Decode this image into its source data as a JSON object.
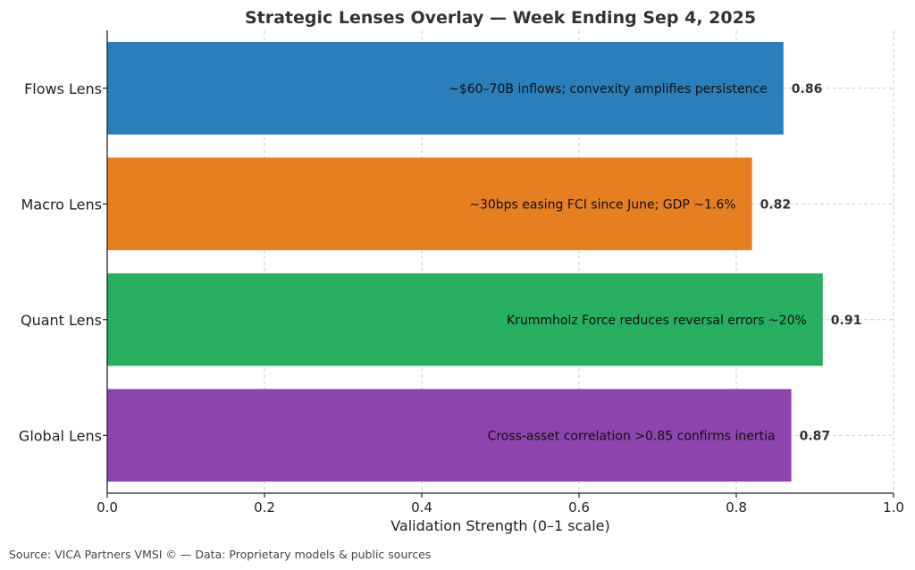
{
  "chart_data": {
    "type": "bar",
    "orientation": "horizontal",
    "title": "Strategic Lenses Overlay — Week Ending Sep 4, 2025",
    "xlabel": "Validation Strength (0–1 scale)",
    "ylabel": "",
    "xlim": [
      0,
      1
    ],
    "xticks": [
      0.0,
      0.2,
      0.4,
      0.6,
      0.8,
      1.0
    ],
    "xtick_labels": [
      "0.0",
      "0.2",
      "0.4",
      "0.6",
      "0.8",
      "1.0"
    ],
    "grid": true,
    "categories": [
      "Flows Lens",
      "Macro Lens",
      "Quant Lens",
      "Global Lens"
    ],
    "values": [
      0.86,
      0.82,
      0.91,
      0.87
    ],
    "value_labels": [
      "0.86",
      "0.82",
      "0.91",
      "0.87"
    ],
    "annotations": [
      "~$60–70B inflows; convexity amplifies persistence",
      "~30bps easing FCI since June; GDP ~1.6%",
      "Krummholz Force reduces reversal errors ~20%",
      "Cross-asset correlation >0.85 confirms inertia"
    ],
    "colors": [
      "#2a7fba",
      "#e57f22",
      "#27ae60",
      "#8e44ad"
    ]
  },
  "source": "Source: VICA Partners VMSI © — Data: Proprietary models & public sources"
}
